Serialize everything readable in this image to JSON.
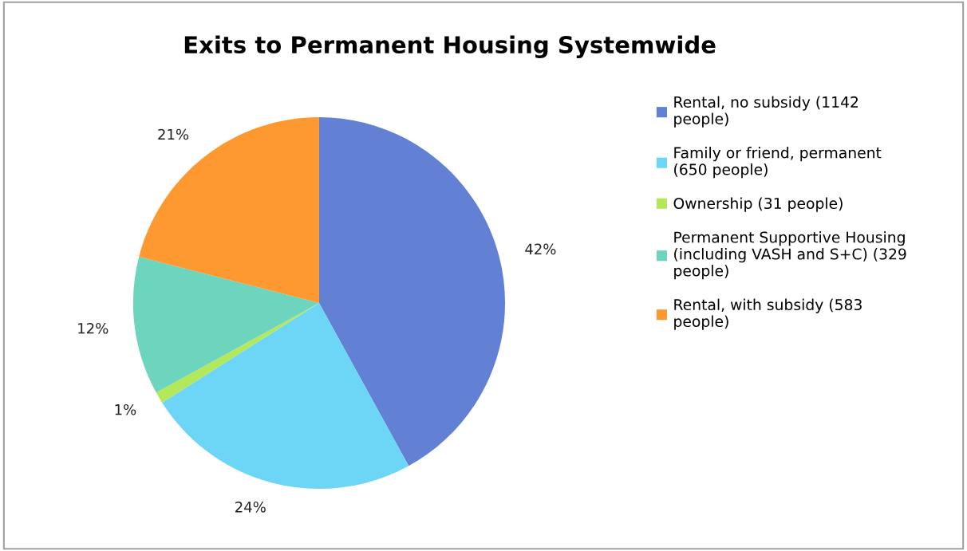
{
  "chart_data": {
    "type": "pie",
    "title": "Exits to Permanent Housing Systemwide",
    "categories": [
      "Rental, no subsidy (1142 people)",
      "Family or friend, permanent (650 people)",
      "Ownership (31 people)",
      "Permanent Supportive Housing (including VASH and S+C) (329 people)",
      "Rental, with subsidy (583 people)"
    ],
    "values": [
      42,
      24,
      1,
      12,
      21
    ],
    "colors": [
      "#6381d4",
      "#6dd5f5",
      "#b3e85a",
      "#6dd4bd",
      "#fe9932"
    ],
    "value_labels": [
      "42%",
      "24%",
      "1%",
      "12%",
      "21%"
    ],
    "legend": "right"
  }
}
